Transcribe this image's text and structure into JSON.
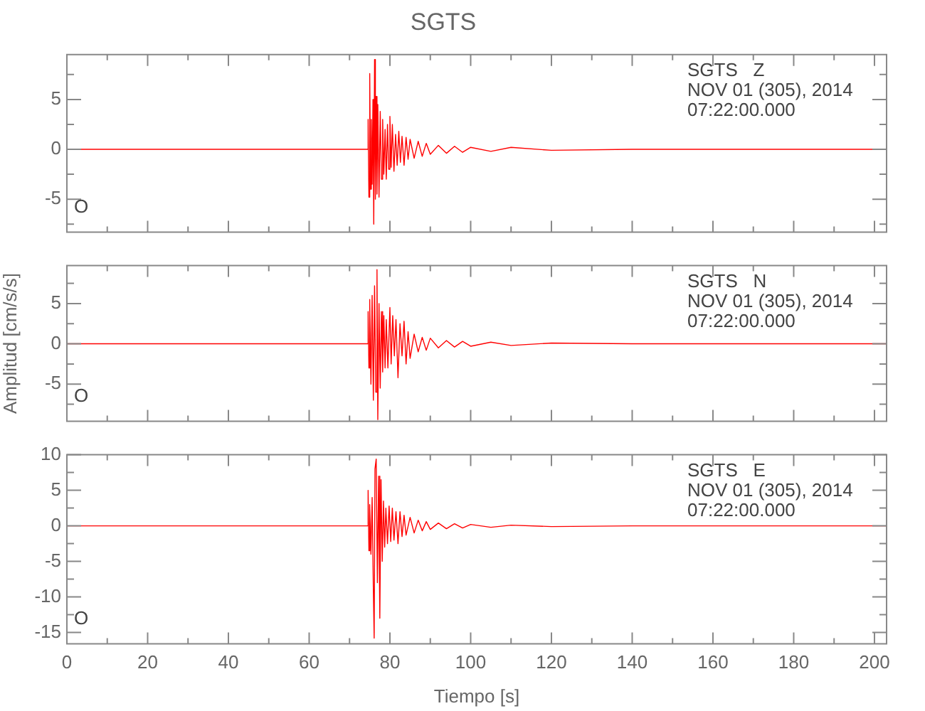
{
  "chart_data": [
    {
      "type": "line",
      "title": "SGTS",
      "xlim": [
        0,
        203
      ],
      "ylim": [
        -8.3,
        9.5
      ],
      "tick_labels": "y",
      "xticks": [
        0,
        {
          "value": 10,
          "label": null
        },
        20,
        {
          "value": 30,
          "label": null
        },
        40,
        {
          "value": 50,
          "label": null
        },
        60,
        {
          "value": 70,
          "label": null
        },
        80,
        {
          "value": 90,
          "label": null
        },
        100,
        {
          "value": 110,
          "label": null
        },
        120,
        {
          "value": 130,
          "label": null
        },
        140,
        {
          "value": 150,
          "label": null
        },
        160,
        {
          "value": 170,
          "label": null
        },
        180,
        {
          "value": 190,
          "label": null
        },
        200
      ],
      "yticks": [
        {
          "value": 7.5,
          "label": null
        },
        5,
        {
          "value": 2.5,
          "label": null
        },
        0,
        {
          "value": -2.5,
          "label": null
        },
        -5,
        {
          "value": -7.5,
          "label": null
        }
      ],
      "annotations": [
        "SGTS   Z\nNOV 01 (305), 2014\n07:22:00.000",
        "O"
      ],
      "series": [
        {
          "color": "#ff0000",
          "x": [
            0,
            20,
            40,
            60,
            74.4,
            74.6,
            74.8,
            75.0,
            75.2,
            75.4,
            75.6,
            75.8,
            76.0,
            76.2,
            76.4,
            76.6,
            76.8,
            77.0,
            77.3,
            77.6,
            77.9,
            78.2,
            78.5,
            78.8,
            79.1,
            79.4,
            79.7,
            80.0,
            80.3,
            80.6,
            81,
            81.4,
            81.8,
            82.2,
            82.6,
            83,
            83.5,
            84,
            84.5,
            85,
            86,
            87,
            88,
            89,
            90,
            92,
            94,
            96,
            98,
            100,
            105,
            110,
            120,
            140,
            203
          ],
          "values": [
            0,
            0,
            0,
            0,
            0,
            3,
            -4.8,
            7.6,
            -4,
            3,
            -3.5,
            5,
            -7.5,
            9,
            -5,
            5.3,
            -4.5,
            4.5,
            -4.8,
            3.8,
            -3,
            3,
            -2.5,
            2,
            -3,
            2.5,
            -2,
            3.3,
            -1.8,
            2.5,
            -2.2,
            1.5,
            -1.6,
            1.8,
            -1.3,
            1.3,
            -1.6,
            1.2,
            -1,
            1,
            -0.9,
            0.8,
            -0.7,
            0.6,
            -0.5,
            0.4,
            -0.4,
            0.3,
            -0.3,
            0.2,
            -0.2,
            0.2,
            -0.1,
            0,
            0
          ]
        }
      ]
    },
    {
      "type": "line",
      "ylabel": "Amplitud [cm/s/s]",
      "xlim": [
        0,
        203
      ],
      "ylim": [
        -9.6,
        9.7
      ],
      "tick_labels": "y",
      "xticks": [
        0,
        {
          "value": 10,
          "label": null
        },
        20,
        {
          "value": 30,
          "label": null
        },
        40,
        {
          "value": 50,
          "label": null
        },
        60,
        {
          "value": 70,
          "label": null
        },
        80,
        {
          "value": 90,
          "label": null
        },
        100,
        {
          "value": 110,
          "label": null
        },
        120,
        {
          "value": 130,
          "label": null
        },
        140,
        {
          "value": 150,
          "label": null
        },
        160,
        {
          "value": 170,
          "label": null
        },
        180,
        {
          "value": 190,
          "label": null
        },
        200
      ],
      "yticks": [
        {
          "value": 7.5,
          "label": null
        },
        5,
        {
          "value": 2.5,
          "label": null
        },
        0,
        {
          "value": -2.5,
          "label": null
        },
        -5,
        {
          "value": -7.5,
          "label": null
        }
      ],
      "annotations": [
        "SGTS   N\nNOV 01 (305), 2014\n07:22:00.000",
        "O"
      ],
      "series": [
        {
          "color": "#ff0000",
          "x": [
            0,
            20,
            40,
            60,
            74.4,
            74.6,
            74.8,
            75.0,
            75.3,
            75.6,
            75.9,
            76.2,
            76.5,
            76.8,
            77.0,
            77.3,
            77.6,
            77.9,
            78.2,
            78.5,
            78.8,
            79.1,
            79.5,
            80,
            80.3,
            80.7,
            81.1,
            81.5,
            82,
            82.5,
            83,
            83.5,
            84,
            84.5,
            85,
            86,
            87,
            88,
            89,
            90,
            92,
            94,
            96,
            98,
            100,
            105,
            110,
            120,
            140,
            203
          ],
          "values": [
            0,
            0,
            0,
            0,
            0,
            4,
            -3,
            5.5,
            -5,
            6,
            -7,
            7.2,
            -6,
            9.2,
            -9.4,
            5,
            -5.5,
            4,
            -3.5,
            3.5,
            -3,
            3,
            -3,
            4.5,
            -2.5,
            3.5,
            -1.5,
            3,
            -4.2,
            2.5,
            -1.5,
            2.8,
            -2.5,
            1.5,
            -1.8,
            1.2,
            -1,
            0.8,
            -0.8,
            0.7,
            -0.5,
            0.4,
            -0.4,
            0.3,
            -0.3,
            0.2,
            -0.2,
            0.1,
            0,
            0
          ]
        }
      ]
    },
    {
      "type": "line",
      "xlabel": "Tiempo [s]",
      "xlim": [
        0,
        203
      ],
      "ylim": [
        -16.6,
        10
      ],
      "xticks": [
        0,
        {
          "value": 10,
          "label": null
        },
        20,
        {
          "value": 30,
          "label": null
        },
        40,
        {
          "value": 50,
          "label": null
        },
        60,
        {
          "value": 70,
          "label": null
        },
        80,
        {
          "value": 90,
          "label": null
        },
        100,
        {
          "value": 110,
          "label": null
        },
        120,
        {
          "value": 130,
          "label": null
        },
        140,
        {
          "value": 150,
          "label": null
        },
        160,
        {
          "value": 170,
          "label": null
        },
        180,
        {
          "value": 190,
          "label": null
        },
        200
      ],
      "yticks": [
        10,
        {
          "value": 7.5,
          "label": null
        },
        5,
        {
          "value": 2.5,
          "label": null
        },
        0,
        {
          "value": -2.5,
          "label": null
        },
        -5,
        {
          "value": -7.5,
          "label": null
        },
        -10,
        {
          "value": -12.5,
          "label": null
        },
        -15
      ],
      "annotations": [
        "SGTS   E\nNOV 01 (305), 2014\n07:22:00.000",
        "O"
      ],
      "series": [
        {
          "color": "#ff0000",
          "x": [
            0,
            20,
            40,
            60,
            74.4,
            74.6,
            74.8,
            75,
            75.3,
            75.6,
            75.9,
            76.1,
            76.3,
            76.6,
            76.9,
            77.2,
            77.5,
            77.8,
            78.1,
            78.4,
            78.7,
            79,
            79.4,
            79.8,
            80.2,
            80.6,
            81,
            81.5,
            82,
            82.5,
            83,
            83.5,
            84,
            85,
            86,
            87,
            88,
            89,
            90,
            92,
            94,
            96,
            98,
            100,
            105,
            110,
            120,
            140,
            203
          ],
          "values": [
            0,
            0,
            0,
            0,
            0,
            5,
            -3.5,
            3,
            -4,
            4,
            -9,
            -15.8,
            8,
            9.4,
            -8,
            7,
            -13,
            6.5,
            -5,
            3.5,
            -3,
            2.5,
            -2.5,
            2.8,
            -2.2,
            2.5,
            -2,
            2,
            -2.5,
            2,
            -1.5,
            1.5,
            -1.3,
            1.2,
            -1,
            0.8,
            -0.7,
            0.6,
            -0.5,
            0.4,
            -0.4,
            0.3,
            -0.3,
            0.2,
            -0.2,
            0.1,
            -0.1,
            0,
            0
          ]
        }
      ]
    }
  ]
}
